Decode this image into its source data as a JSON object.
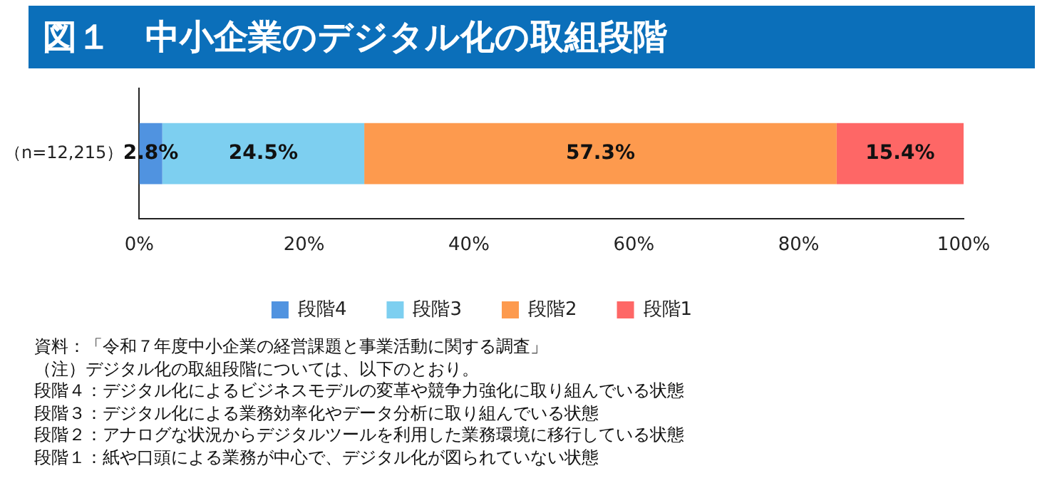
{
  "chart_data": {
    "type": "bar",
    "orientation": "horizontal",
    "stacked": true,
    "title": "図１　中小企業のデジタル化の取組段階",
    "categories": [
      "（n=12,215）"
    ],
    "series": [
      {
        "name": "段階4",
        "color": "#5093e0",
        "values": [
          2.8
        ]
      },
      {
        "name": "段階3",
        "color": "#7dcff0",
        "values": [
          24.5
        ]
      },
      {
        "name": "段階2",
        "color": "#fd9a4e",
        "values": [
          57.3
        ]
      },
      {
        "name": "段階1",
        "color": "#fe6766",
        "values": [
          15.4
        ]
      }
    ],
    "xlim": [
      0,
      100
    ],
    "xticks": [
      {
        "value": 0,
        "label": "0%"
      },
      {
        "value": 20,
        "label": "20%"
      },
      {
        "value": 40,
        "label": "40%"
      },
      {
        "value": 60,
        "label": "60%"
      },
      {
        "value": 80,
        "label": "80%"
      },
      {
        "value": 100,
        "label": "100%"
      }
    ],
    "value_labels": [
      "2.8%",
      "24.5%",
      "57.3%",
      "15.4%"
    ],
    "grid": false,
    "legend": "bottom",
    "annotations": [
      "資料：「令和７年度中小企業の経営課題と事業活動に関する調査」",
      "（注）デジタル化の取組段階については、以下のとおり。",
      "段階４：デジタル化によるビジネスモデルの変革や競争力強化に取り組んでいる状態",
      "段階３：デジタル化による業務効率化やデータ分析に取り組んでいる状態",
      "段階２：アナログな状況からデジタルツールを利用した業務環境に移行している状態",
      "段階１：紙や口頭による業務が中心で、デジタル化が図られていない状態"
    ]
  }
}
